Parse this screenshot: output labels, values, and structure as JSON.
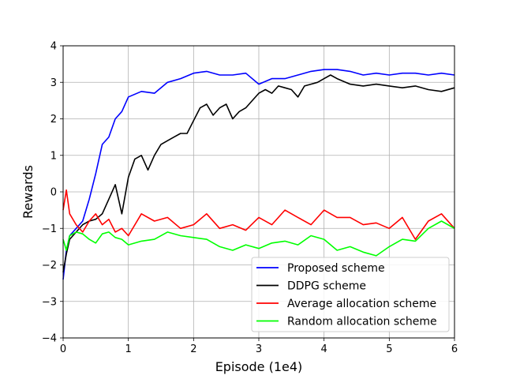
{
  "chart_data": {
    "type": "line",
    "xlabel": "Episode (1e4)",
    "ylabel": "Rewards",
    "xlim": [
      0,
      6
    ],
    "ylim": [
      -4,
      4
    ],
    "xticks": [
      "0",
      "1",
      "2",
      "3",
      "4",
      "5",
      "6"
    ],
    "yticks": [
      "4",
      "3",
      "2",
      "1",
      "0",
      "−1",
      "−2",
      "−3",
      "−4"
    ],
    "grid": true,
    "legend_position": "lower-right",
    "series": [
      {
        "name": "Proposed scheme",
        "color": "#0000ff",
        "x": [
          0,
          0.05,
          0.1,
          0.2,
          0.3,
          0.4,
          0.5,
          0.6,
          0.7,
          0.8,
          0.9,
          1.0,
          1.2,
          1.4,
          1.6,
          1.8,
          2.0,
          2.2,
          2.4,
          2.6,
          2.8,
          3.0,
          3.2,
          3.4,
          3.6,
          3.8,
          4.0,
          4.2,
          4.4,
          4.6,
          4.8,
          5.0,
          5.2,
          5.4,
          5.6,
          5.8,
          6.0
        ],
        "y": [
          -2.4,
          -1.6,
          -1.2,
          -1.0,
          -0.8,
          -0.2,
          0.5,
          1.3,
          1.5,
          2.0,
          2.2,
          2.6,
          2.75,
          2.7,
          3.0,
          3.1,
          3.25,
          3.3,
          3.2,
          3.2,
          3.25,
          2.95,
          3.1,
          3.1,
          3.2,
          3.3,
          3.35,
          3.35,
          3.3,
          3.2,
          3.25,
          3.2,
          3.25,
          3.25,
          3.2,
          3.25,
          3.2
        ]
      },
      {
        "name": "DDPG scheme",
        "color": "#000000",
        "x": [
          0,
          0.05,
          0.1,
          0.2,
          0.3,
          0.4,
          0.5,
          0.6,
          0.7,
          0.8,
          0.9,
          1.0,
          1.1,
          1.2,
          1.3,
          1.4,
          1.5,
          1.6,
          1.7,
          1.8,
          1.9,
          2.0,
          2.1,
          2.2,
          2.3,
          2.4,
          2.5,
          2.6,
          2.7,
          2.8,
          2.9,
          3.0,
          3.1,
          3.2,
          3.3,
          3.4,
          3.5,
          3.6,
          3.7,
          3.8,
          3.9,
          4.0,
          4.1,
          4.2,
          4.4,
          4.6,
          4.8,
          5.0,
          5.2,
          5.4,
          5.6,
          5.8,
          6.0
        ],
        "y": [
          -2.2,
          -1.7,
          -1.3,
          -1.1,
          -0.9,
          -0.8,
          -0.75,
          -0.6,
          -0.2,
          0.2,
          -0.6,
          0.4,
          0.9,
          1.0,
          0.6,
          1.0,
          1.3,
          1.4,
          1.5,
          1.6,
          1.6,
          1.95,
          2.3,
          2.4,
          2.1,
          2.3,
          2.4,
          2.0,
          2.2,
          2.3,
          2.5,
          2.7,
          2.8,
          2.7,
          2.9,
          2.85,
          2.8,
          2.6,
          2.9,
          2.95,
          3.0,
          3.1,
          3.2,
          3.1,
          2.95,
          2.9,
          2.95,
          2.9,
          2.85,
          2.9,
          2.8,
          2.75,
          2.85
        ]
      },
      {
        "name": "Average allocation scheme",
        "color": "#ff0000",
        "x": [
          0,
          0.05,
          0.1,
          0.2,
          0.3,
          0.4,
          0.5,
          0.6,
          0.7,
          0.8,
          0.9,
          1.0,
          1.2,
          1.4,
          1.6,
          1.8,
          2.0,
          2.2,
          2.4,
          2.6,
          2.8,
          3.0,
          3.2,
          3.4,
          3.6,
          3.8,
          4.0,
          4.2,
          4.4,
          4.6,
          4.8,
          5.0,
          5.2,
          5.4,
          5.6,
          5.8,
          6.0
        ],
        "y": [
          -0.5,
          0.05,
          -0.6,
          -0.9,
          -1.1,
          -0.8,
          -0.6,
          -0.9,
          -0.75,
          -1.1,
          -1.0,
          -1.2,
          -0.6,
          -0.8,
          -0.7,
          -1.0,
          -0.9,
          -0.6,
          -1.0,
          -0.9,
          -1.05,
          -0.7,
          -0.9,
          -0.5,
          -0.7,
          -0.9,
          -0.5,
          -0.7,
          -0.7,
          -0.9,
          -0.85,
          -1.0,
          -0.7,
          -1.3,
          -0.8,
          -0.6,
          -1.0
        ]
      },
      {
        "name": "Random allocation scheme",
        "color": "#00ff00",
        "x": [
          0,
          0.05,
          0.1,
          0.2,
          0.3,
          0.4,
          0.5,
          0.6,
          0.7,
          0.8,
          0.9,
          1.0,
          1.2,
          1.4,
          1.6,
          1.8,
          2.0,
          2.2,
          2.4,
          2.6,
          2.8,
          3.0,
          3.2,
          3.4,
          3.6,
          3.8,
          4.0,
          4.2,
          4.4,
          4.6,
          4.8,
          5.0,
          5.2,
          5.4,
          5.6,
          5.8,
          6.0
        ],
        "y": [
          -1.3,
          -1.6,
          -1.2,
          -1.1,
          -1.15,
          -1.3,
          -1.4,
          -1.15,
          -1.1,
          -1.25,
          -1.3,
          -1.45,
          -1.35,
          -1.3,
          -1.1,
          -1.2,
          -1.25,
          -1.3,
          -1.5,
          -1.6,
          -1.45,
          -1.55,
          -1.4,
          -1.35,
          -1.45,
          -1.2,
          -1.3,
          -1.6,
          -1.5,
          -1.65,
          -1.75,
          -1.5,
          -1.3,
          -1.35,
          -1.0,
          -0.8,
          -1.0
        ]
      }
    ]
  }
}
